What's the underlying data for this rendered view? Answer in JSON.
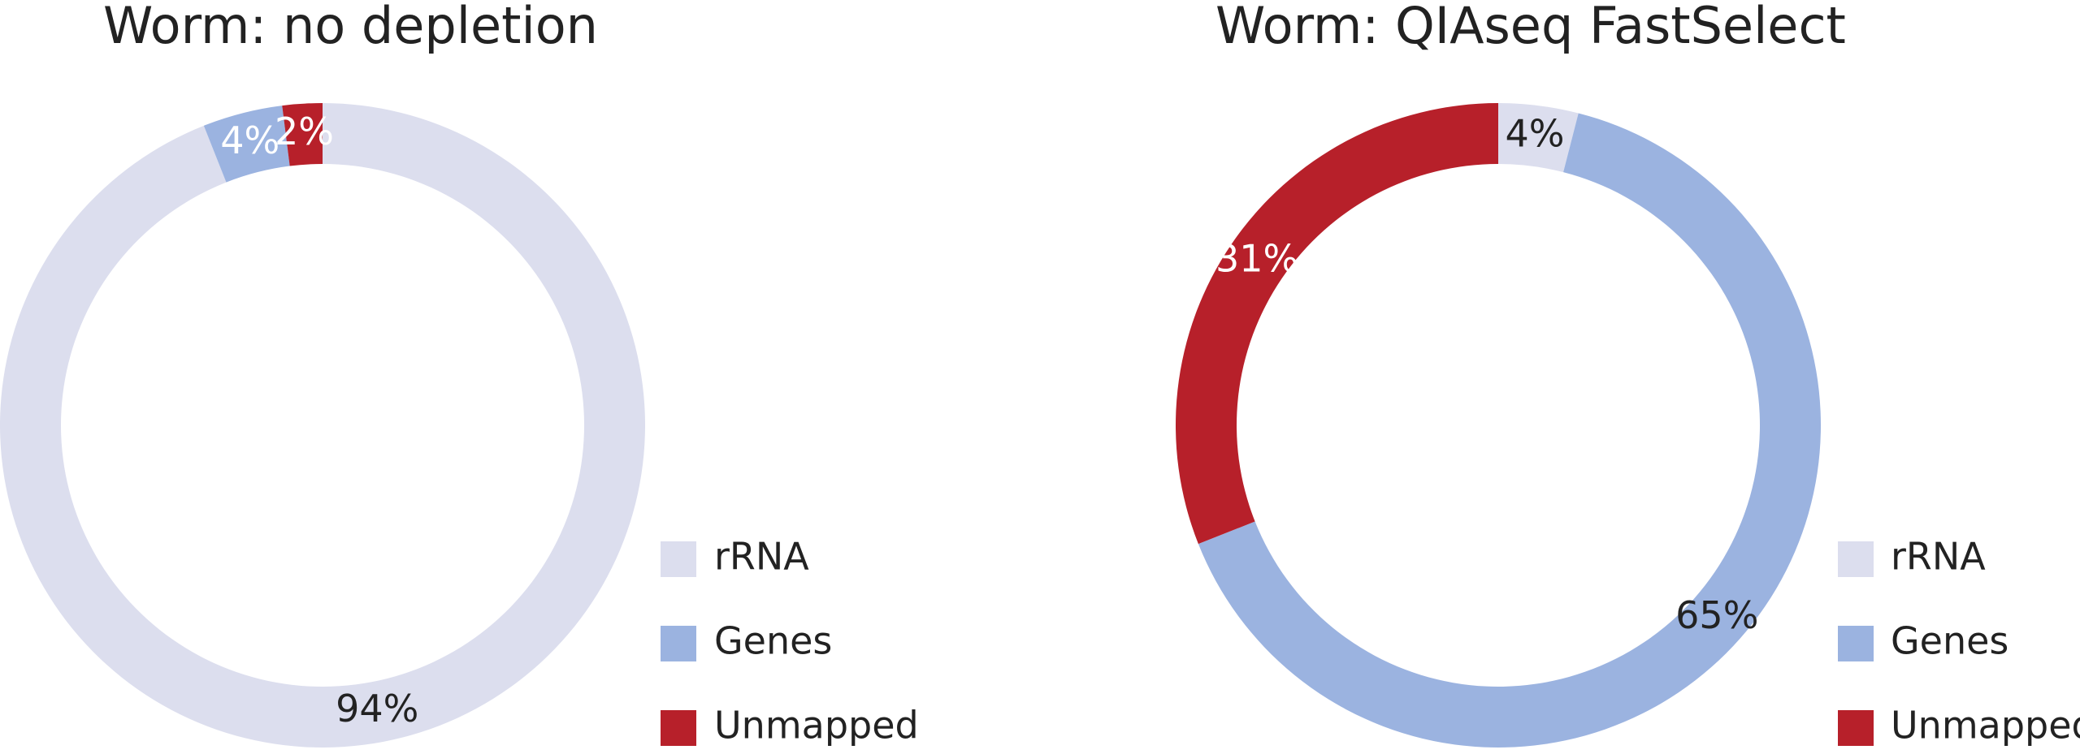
{
  "chart_data": [
    {
      "type": "donut",
      "title": "Worm: no depletion",
      "categories": [
        "rRNA",
        "Genes",
        "Unmapped"
      ],
      "values": [
        94,
        4,
        2
      ],
      "value_labels": [
        "94%",
        "4%",
        "2%"
      ],
      "colors": [
        "#dcdeee",
        "#9bb3e0",
        "#b7202a"
      ]
    },
    {
      "type": "donut",
      "title": "Worm: QIAseq FastSelect",
      "categories": [
        "rRNA",
        "Genes",
        "Unmapped"
      ],
      "values": [
        4,
        65,
        31
      ],
      "value_labels": [
        "4%",
        "65%",
        "31%"
      ],
      "colors": [
        "#dcdeee",
        "#9bb3e0",
        "#b7202a"
      ]
    }
  ]
}
